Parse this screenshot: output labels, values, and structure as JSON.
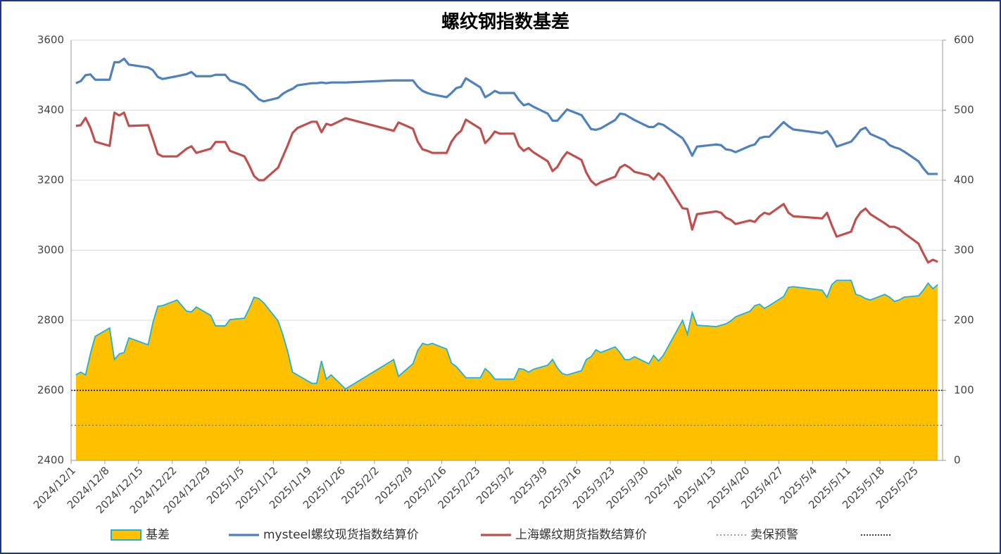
{
  "chart_data": {
    "type": "line",
    "title": "螺纹钢指数基差",
    "x": [
      "2024/12/2",
      "2024/12/3",
      "2024/12/4",
      "2024/12/5",
      "2024/12/6",
      "2024/12/9",
      "2024/12/10",
      "2024/12/11",
      "2024/12/12",
      "2024/12/13",
      "2024/12/17",
      "2024/12/18",
      "2024/12/19",
      "2024/12/20",
      "2024/12/23",
      "2024/12/25",
      "2024/12/26",
      "2024/12/27",
      "2024/12/30",
      "2024/12/31",
      "2025/1/2",
      "2025/1/3",
      "2025/1/6",
      "2025/1/7",
      "2025/1/8",
      "2025/1/9",
      "2025/1/10",
      "2025/1/13",
      "2025/1/14",
      "2025/1/15",
      "2025/1/16",
      "2025/1/17",
      "2025/1/20",
      "2025/1/21",
      "2025/1/22",
      "2025/1/23",
      "2025/1/24",
      "2025/1/27",
      "2025/2/6",
      "2025/2/7",
      "2025/2/10",
      "2025/2/11",
      "2025/2/12",
      "2025/2/13",
      "2025/2/14",
      "2025/2/17",
      "2025/2/18",
      "2025/2/19",
      "2025/2/20",
      "2025/2/21",
      "2025/2/24",
      "2025/2/25",
      "2025/2/26",
      "2025/2/27",
      "2025/2/28",
      "2025/3/3",
      "2025/3/4",
      "2025/3/5",
      "2025/3/6",
      "2025/3/7",
      "2025/3/10",
      "2025/3/11",
      "2025/3/12",
      "2025/3/13",
      "2025/3/14",
      "2025/3/17",
      "2025/3/18",
      "2025/3/19",
      "2025/3/20",
      "2025/3/21",
      "2025/3/24",
      "2025/3/25",
      "2025/3/26",
      "2025/3/27",
      "2025/3/28",
      "2025/3/31",
      "2025/4/1",
      "2025/4/2",
      "2025/4/3",
      "2025/4/7",
      "2025/4/8",
      "2025/4/9",
      "2025/4/10",
      "2025/4/14",
      "2025/4/15",
      "2025/4/16",
      "2025/4/17",
      "2025/4/18",
      "2025/4/21",
      "2025/4/22",
      "2025/4/23",
      "2025/4/24",
      "2025/4/25",
      "2025/4/28",
      "2025/4/29",
      "2025/4/30",
      "2025/5/6",
      "2025/5/7",
      "2025/5/8",
      "2025/5/9",
      "2025/5/12",
      "2025/5/13",
      "2025/5/14",
      "2025/5/15",
      "2025/5/16",
      "2025/5/19",
      "2025/5/20",
      "2025/5/21",
      "2025/5/22",
      "2025/5/23",
      "2025/5/26",
      "2025/5/27",
      "2025/5/28",
      "2025/5/29",
      "2025/5/30"
    ],
    "xlim": [
      "2024/12/1",
      "2025/5/31"
    ],
    "xticks": [
      "2024/12/1",
      "2024/12/8",
      "2024/12/15",
      "2024/12/22",
      "2024/12/29",
      "2025/1/5",
      "2025/1/12",
      "2025/1/19",
      "2025/1/26",
      "2025/2/2",
      "2025/2/9",
      "2025/2/16",
      "2025/2/23",
      "2025/3/2",
      "2025/3/9",
      "2025/3/16",
      "2025/3/23",
      "2025/3/30",
      "2025/4/6",
      "2025/4/13",
      "2025/4/20",
      "2025/4/27",
      "2025/5/4",
      "2025/5/11",
      "2025/5/18",
      "2025/5/25"
    ],
    "ylim": [
      2400,
      3600
    ],
    "yticks": [
      2400,
      2600,
      2800,
      3000,
      3200,
      3400,
      3600
    ],
    "y2lim": [
      0,
      600
    ],
    "y2ticks": [
      0,
      100,
      200,
      300,
      400,
      500,
      600
    ],
    "grid": true,
    "legend": "bottom",
    "series": [
      {
        "name": "基差",
        "type": "area",
        "axis": "y2",
        "color": "#FFC000",
        "edge_color": "#1FB2D6",
        "values": [
          122,
          126,
          122,
          152,
          177,
          189,
          144,
          152,
          154,
          175,
          165,
          197,
          220,
          221,
          229,
          213,
          212,
          219,
          207,
          192,
          192,
          201,
          203,
          217,
          233,
          231,
          225,
          199,
          179,
          155,
          126,
          122,
          110,
          110,
          142,
          116,
          122,
          102,
          144,
          120,
          138,
          157,
          167,
          165,
          167,
          159,
          139,
          134,
          126,
          118,
          118,
          131,
          125,
          116,
          116,
          116,
          131,
          130,
          126,
          130,
          136,
          144,
          132,
          124,
          122,
          128,
          144,
          148,
          158,
          154,
          162,
          154,
          144,
          144,
          148,
          138,
          150,
          142,
          150,
          200,
          180,
          211,
          193,
          191,
          193,
          195,
          199,
          205,
          213,
          221,
          223,
          217,
          221,
          234,
          247,
          248,
          243,
          233,
          251,
          257,
          257,
          237,
          235,
          231,
          229,
          237,
          233,
          227,
          229,
          233,
          235,
          243,
          253,
          245,
          251
        ]
      },
      {
        "name": "mysteel螺纹现货指数结算价",
        "type": "line",
        "color": "#4F81BD",
        "values": [
          3477,
          3483,
          3500,
          3502,
          3487,
          3487,
          3537,
          3537,
          3547,
          3530,
          3522,
          3514,
          3495,
          3489,
          3497,
          3503,
          3509,
          3497,
          3497,
          3501,
          3501,
          3485,
          3471,
          3459,
          3445,
          3431,
          3425,
          3435,
          3447,
          3455,
          3461,
          3471,
          3477,
          3477,
          3479,
          3477,
          3479,
          3479,
          3485,
          3485,
          3485,
          3467,
          3455,
          3449,
          3445,
          3437,
          3449,
          3463,
          3467,
          3491,
          3465,
          3437,
          3445,
          3455,
          3449,
          3449,
          3429,
          3414,
          3418,
          3410,
          3390,
          3370,
          3370,
          3386,
          3402,
          3386,
          3366,
          3346,
          3344,
          3348,
          3372,
          3390,
          3388,
          3380,
          3372,
          3352,
          3352,
          3362,
          3358,
          3320,
          3298,
          3270,
          3296,
          3302,
          3300,
          3288,
          3286,
          3280,
          3298,
          3302,
          3320,
          3324,
          3324,
          3366,
          3354,
          3345,
          3334,
          3340,
          3322,
          3296,
          3310,
          3326,
          3344,
          3350,
          3332,
          3314,
          3300,
          3294,
          3290,
          3282,
          3254,
          3234,
          3218,
          3218,
          3218
        ]
      },
      {
        "name": "上海螺纹期货指数结算价",
        "type": "line",
        "color": "#C0504D",
        "values": [
          3355,
          3357,
          3378,
          3350,
          3310,
          3298,
          3393,
          3385,
          3393,
          3355,
          3357,
          3317,
          3275,
          3268,
          3268,
          3290,
          3297,
          3278,
          3290,
          3309,
          3309,
          3284,
          3268,
          3242,
          3212,
          3200,
          3200,
          3236,
          3268,
          3300,
          3335,
          3349,
          3367,
          3367,
          3337,
          3361,
          3357,
          3377,
          3341,
          3365,
          3347,
          3310,
          3288,
          3284,
          3278,
          3278,
          3310,
          3329,
          3341,
          3373,
          3347,
          3306,
          3320,
          3339,
          3333,
          3333,
          3298,
          3284,
          3292,
          3280,
          3254,
          3226,
          3238,
          3262,
          3280,
          3258,
          3222,
          3198,
          3186,
          3194,
          3210,
          3236,
          3244,
          3236,
          3224,
          3214,
          3202,
          3220,
          3208,
          3120,
          3118,
          3059,
          3103,
          3111,
          3107,
          3093,
          3087,
          3075,
          3085,
          3081,
          3097,
          3107,
          3103,
          3132,
          3107,
          3097,
          3091,
          3107,
          3071,
          3039,
          3053,
          3089,
          3109,
          3119,
          3103,
          3077,
          3067,
          3067,
          3061,
          3049,
          3019,
          2991,
          2965,
          2973,
          2967
        ]
      }
    ],
    "reference_lines": [
      {
        "name": "卖保预警",
        "axis": "y2",
        "value": 50,
        "color": "#7F7F7F"
      },
      {
        "axis": "y2",
        "value": 100,
        "color": "#000000"
      }
    ]
  }
}
